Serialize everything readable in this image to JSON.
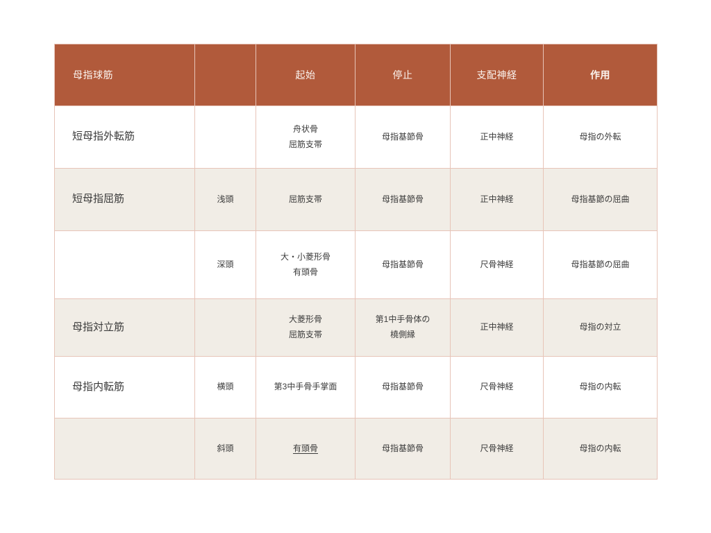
{
  "slide": {
    "background": "#ffffff"
  },
  "colors": {
    "header_bg": "#b15a3b",
    "header_text": "#fbf4ef",
    "body_text": "#3b3b3b",
    "row_plain_bg": "#ffffff",
    "row_shade_bg": "#f1ede6",
    "grid_line": "#e7c4b8",
    "outer_border": "#d39b84"
  },
  "table": {
    "headers": [
      {
        "label": "母指球筋",
        "bold": false
      },
      {
        "label": "",
        "bold": false
      },
      {
        "label": "起始",
        "bold": false
      },
      {
        "label": "停止",
        "bold": false
      },
      {
        "label": "支配神経",
        "bold": false
      },
      {
        "label": "作用",
        "bold": true
      }
    ],
    "rows": [
      {
        "shade": false,
        "cells": [
          {
            "field": "muscle",
            "lines": [
              "短母指外転筋"
            ]
          },
          {
            "field": "head",
            "lines": []
          },
          {
            "field": "origin",
            "lines": [
              "舟状骨",
              "屈筋支帯"
            ]
          },
          {
            "field": "insertion",
            "lines": [
              "母指基節骨"
            ]
          },
          {
            "field": "nerve",
            "lines": [
              "正中神経"
            ]
          },
          {
            "field": "action",
            "lines": [
              "母指の外転"
            ]
          }
        ]
      },
      {
        "shade": true,
        "cells": [
          {
            "field": "muscle",
            "lines": [
              "短母指屈筋"
            ]
          },
          {
            "field": "head",
            "lines": [
              "浅頭"
            ]
          },
          {
            "field": "origin",
            "lines": [
              "屈筋支帯"
            ]
          },
          {
            "field": "insertion",
            "lines": [
              "母指基節骨"
            ]
          },
          {
            "field": "nerve",
            "lines": [
              "正中神経"
            ]
          },
          {
            "field": "action",
            "lines": [
              "母指基節の屈曲"
            ]
          }
        ]
      },
      {
        "shade": false,
        "cells": [
          {
            "field": "muscle",
            "lines": []
          },
          {
            "field": "head",
            "lines": [
              "深頭"
            ]
          },
          {
            "field": "origin",
            "lines": [
              "大・小菱形骨",
              "有頭骨"
            ]
          },
          {
            "field": "insertion",
            "lines": [
              "母指基節骨"
            ]
          },
          {
            "field": "nerve",
            "lines": [
              "尺骨神経"
            ]
          },
          {
            "field": "action",
            "lines": [
              "母指基節の屈曲"
            ]
          }
        ]
      },
      {
        "shade": true,
        "cells": [
          {
            "field": "muscle",
            "lines": [
              "母指対立筋"
            ]
          },
          {
            "field": "head",
            "lines": []
          },
          {
            "field": "origin",
            "lines": [
              "大菱形骨",
              "屈筋支帯"
            ]
          },
          {
            "field": "insertion",
            "lines": [
              "第1中手骨体の",
              "橈側縁"
            ]
          },
          {
            "field": "nerve",
            "lines": [
              "正中神経"
            ]
          },
          {
            "field": "action",
            "lines": [
              "母指の対立"
            ]
          }
        ]
      },
      {
        "shade": false,
        "cells": [
          {
            "field": "muscle",
            "lines": [
              "母指内転筋"
            ]
          },
          {
            "field": "head",
            "lines": [
              "横頭"
            ]
          },
          {
            "field": "origin",
            "lines": [
              "第3中手骨手掌面"
            ]
          },
          {
            "field": "insertion",
            "lines": [
              "母指基節骨"
            ]
          },
          {
            "field": "nerve",
            "lines": [
              "尺骨神経"
            ]
          },
          {
            "field": "action",
            "lines": [
              "母指の内転"
            ]
          }
        ]
      },
      {
        "shade": true,
        "cells": [
          {
            "field": "muscle",
            "lines": []
          },
          {
            "field": "head",
            "lines": [
              "斜頭"
            ]
          },
          {
            "field": "origin",
            "lines": [
              "有頭骨"
            ],
            "underline": true
          },
          {
            "field": "insertion",
            "lines": [
              "母指基節骨"
            ]
          },
          {
            "field": "nerve",
            "lines": [
              "尺骨神経"
            ]
          },
          {
            "field": "action",
            "lines": [
              "母指の内転"
            ]
          }
        ]
      }
    ]
  }
}
